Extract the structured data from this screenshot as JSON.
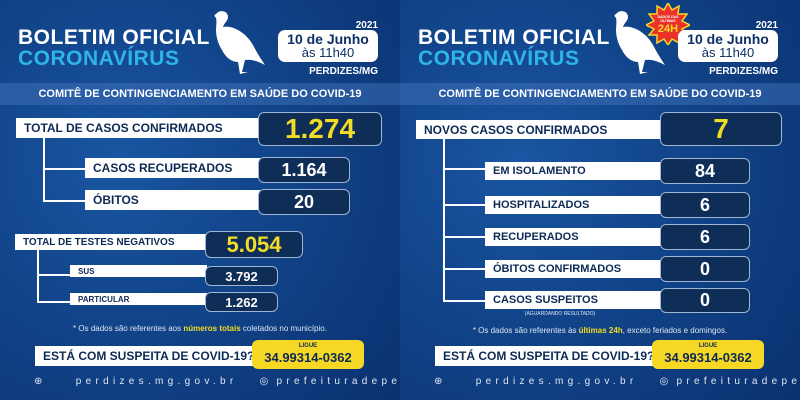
{
  "header": {
    "title": "BOLETIM OFICIAL",
    "subtitle": "CORONAVÍRUS",
    "year": "2021",
    "date": "10 de Junho",
    "time": "às 11h40",
    "city": "PERDIZES/MG",
    "committee": "COMITÊ DE CONTINGENCIAMENTO EM SAÚDE DO COVID-19"
  },
  "left": {
    "confirmed": {
      "label": "TOTAL DE CASOS CONFIRMADOS",
      "value": "1.274"
    },
    "recovered": {
      "label": "CASOS RECUPERADOS",
      "value": "1.164"
    },
    "deaths": {
      "label": "ÓBITOS",
      "value": "20"
    },
    "negatives": {
      "label": "TOTAL DE TESTES NEGATIVOS",
      "value": "5.054"
    },
    "sus": {
      "label": "SUS",
      "value": "3.792"
    },
    "private": {
      "label": "PARTICULAR",
      "value": "1.262"
    },
    "note_pre": "* Os dados são referentes aos ",
    "note_bold": "números totais",
    "note_post": " coletados no município."
  },
  "right": {
    "badge_top": "DADOS DAS ÚLTIMAS",
    "badge_main": "24H",
    "new_cases": {
      "label": "NOVOS CASOS CONFIRMADOS",
      "value": "7"
    },
    "isolation": {
      "label": "EM ISOLAMENTO",
      "value": "84"
    },
    "hospitalized": {
      "label": "HOSPITALIZADOS",
      "value": "6"
    },
    "recovered": {
      "label": "RECUPERADOS",
      "value": "6"
    },
    "deaths": {
      "label": "ÓBITOS CONFIRMADOS",
      "value": "0"
    },
    "suspected": {
      "label": "CASOS SUSPEITOS",
      "sublabel": "(AGUARDANDO RESULTADO)",
      "value": "0"
    },
    "note_pre": "* Os dados são referentes às ",
    "note_bold": "últimas 24h",
    "note_post": ", exceto feriados e domingos."
  },
  "cta": {
    "question": "ESTÁ COM SUSPEITA DE COVID-19?",
    "call": "LIGUE",
    "phone": "34.99314-0362"
  },
  "footer": {
    "website": "perdizes.mg.gov.br",
    "instagram": "prefeituradeperdizes"
  }
}
